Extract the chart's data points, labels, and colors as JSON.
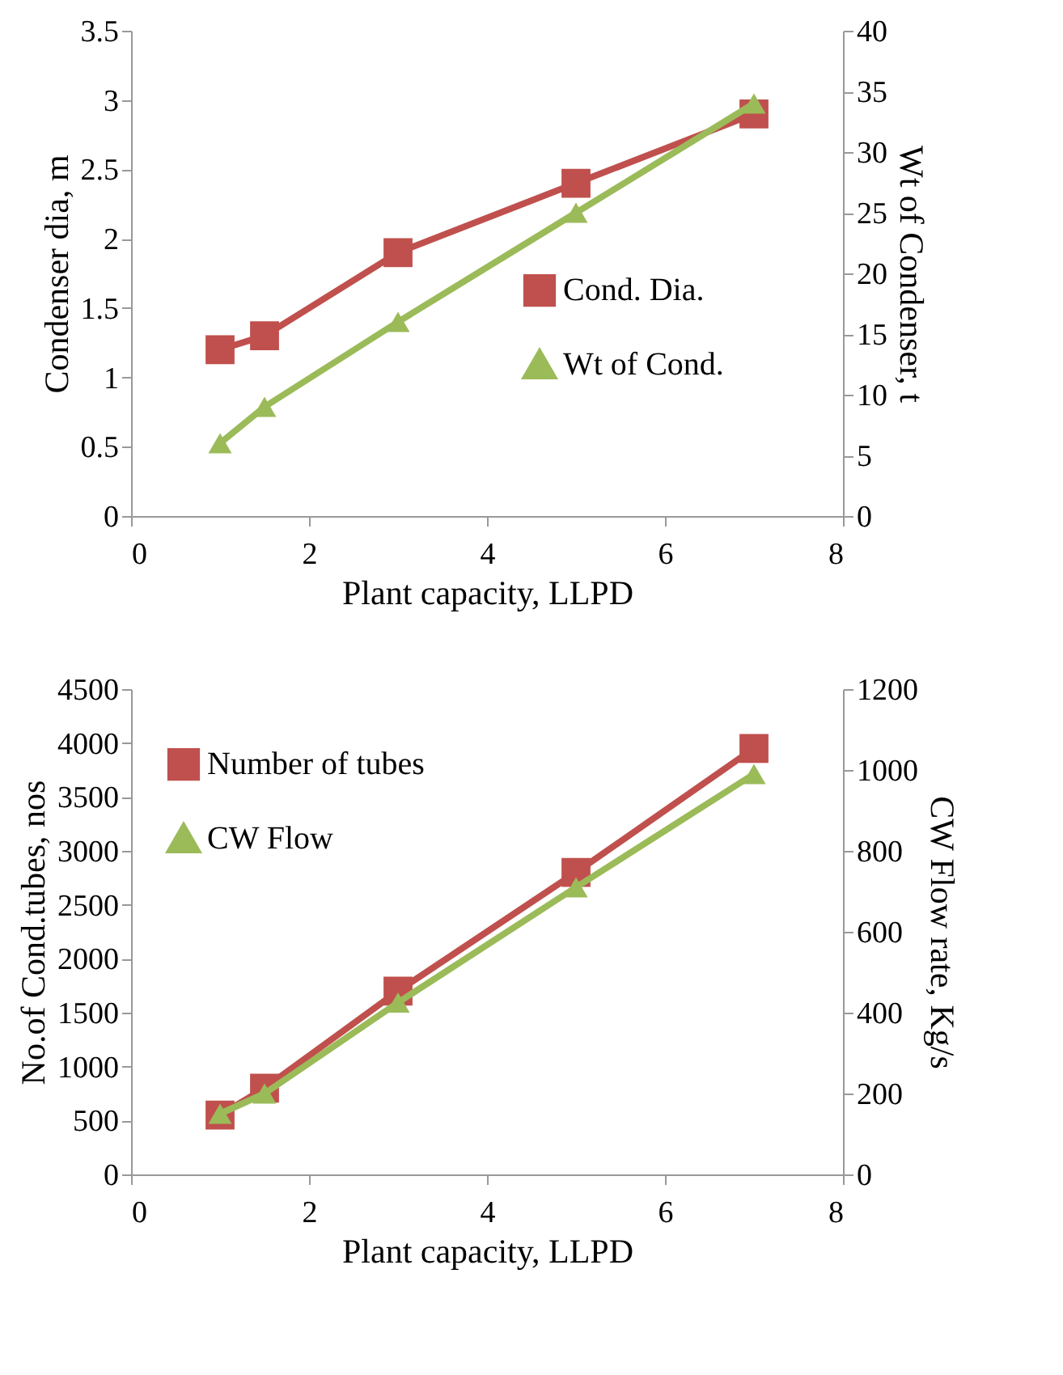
{
  "chart_data": [
    {
      "type": "line",
      "xlabel": "Plant capacity, LLPD",
      "ylabel": "Condenser dia, m",
      "y2label": "Wt of Condenser, t",
      "x": [
        1,
        1.5,
        3,
        5,
        7
      ],
      "xlim": [
        0,
        8
      ],
      "xticks": [
        0,
        2,
        4,
        6,
        8
      ],
      "ylim": [
        0,
        3.5
      ],
      "yticks": [
        0,
        0.5,
        1,
        1.5,
        2,
        2.5,
        3,
        3.5
      ],
      "y2lim": [
        0,
        40
      ],
      "y2ticks": [
        0,
        5,
        10,
        15,
        20,
        25,
        30,
        35,
        40
      ],
      "legend": "right",
      "grid": false,
      "series": [
        {
          "name": "Cond. Dia.",
          "color": "#c0504d",
          "marker": "square",
          "values": [
            1.2,
            1.3,
            1.9,
            2.4,
            2.9
          ]
        },
        {
          "name": "Wt of Cond.",
          "color": "#9bbb59",
          "marker": "triangle",
          "axis": "y2",
          "values": [
            6,
            9,
            16,
            25,
            34
          ]
        }
      ]
    },
    {
      "type": "line",
      "xlabel": "Plant capacity, LLPD",
      "ylabel": "No.of Cond.tubes, nos",
      "y2label": "CW Flow rate, Kg/s",
      "x": [
        1,
        1.5,
        3,
        5,
        7
      ],
      "xlim": [
        0,
        8
      ],
      "xticks": [
        0,
        2,
        4,
        6,
        8
      ],
      "ylim": [
        0,
        4500
      ],
      "yticks": [
        0,
        500,
        1000,
        1500,
        2000,
        2500,
        3000,
        3500,
        4000,
        4500
      ],
      "y2lim": [
        0,
        1200
      ],
      "y2ticks": [
        0,
        200,
        400,
        600,
        800,
        1000,
        1200
      ],
      "legend": "top left",
      "grid": false,
      "series": [
        {
          "name": "Number of tubes",
          "color": "#c0504d",
          "marker": "square",
          "values": [
            550,
            800,
            1700,
            2800,
            3950
          ]
        },
        {
          "name": "CW Flow",
          "color": "#9bbb59",
          "marker": "triangle",
          "axis": "y2",
          "values": [
            150,
            200,
            425,
            710,
            990
          ]
        }
      ]
    }
  ]
}
